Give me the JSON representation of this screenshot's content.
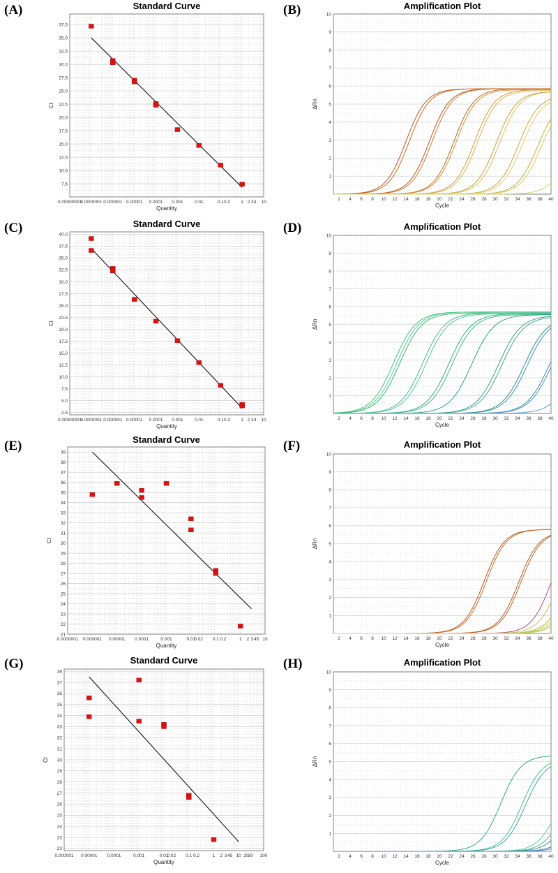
{
  "chart_data": [
    {
      "panel": "(A)",
      "type": "scatter",
      "title": "Standard Curve",
      "xlabel": "Quantity",
      "ylabel": "Ct",
      "xscale": "log",
      "xlim_log": [
        -8,
        1
      ],
      "ylim": [
        5,
        39.5
      ],
      "xticks": [
        {
          "log": -8,
          "label": "0.00000001"
        },
        {
          "log": -7,
          "label": "0.0000001"
        },
        {
          "log": -6,
          "label": "0.000001"
        },
        {
          "log": -5,
          "label": "0.00001"
        },
        {
          "log": -4,
          "label": "0.0001"
        },
        {
          "log": -3,
          "label": "0.001"
        },
        {
          "log": -2,
          "label": "0.01"
        },
        {
          "log": -1,
          "label": "0.1"
        },
        {
          "log": -0.699,
          "label": "0.2"
        },
        {
          "log": 0,
          "label": "1"
        },
        {
          "log": 0.301,
          "label": "2"
        },
        {
          "log": 0.477,
          "label": "3"
        },
        {
          "log": 0.602,
          "label": "4"
        },
        {
          "log": 1,
          "label": "10"
        }
      ],
      "yticks": [
        7.5,
        10.0,
        12.5,
        15.0,
        17.5,
        20.0,
        22.5,
        25.0,
        27.5,
        30.0,
        32.5,
        35.0,
        37.5
      ],
      "points": [
        {
          "logx": -7,
          "y": 37.2
        },
        {
          "logx": -6,
          "y": 30.7
        },
        {
          "logx": -6,
          "y": 30.3
        },
        {
          "logx": -5,
          "y": 27.0
        },
        {
          "logx": -5,
          "y": 26.7
        },
        {
          "logx": -4,
          "y": 22.6
        },
        {
          "logx": -4,
          "y": 22.3
        },
        {
          "logx": -3,
          "y": 17.7
        },
        {
          "logx": -2,
          "y": 14.7
        },
        {
          "logx": -1,
          "y": 11.0
        },
        {
          "logx": 0,
          "y": 7.4
        }
      ],
      "fit_line": [
        {
          "logx": -7,
          "y": 35.0
        },
        {
          "logx": 0,
          "y": 6.8
        }
      ]
    },
    {
      "panel": "(B)",
      "type": "line",
      "title": "Amplification Plot",
      "xlabel": "Cycle",
      "ylabel": "ΔRn",
      "xlim": [
        1,
        40
      ],
      "ylim": [
        0,
        10
      ],
      "xticks": [
        2,
        4,
        6,
        8,
        10,
        12,
        14,
        16,
        18,
        20,
        22,
        24,
        26,
        28,
        30,
        32,
        34,
        36,
        38,
        40
      ],
      "yticks": [
        1,
        2,
        3,
        4,
        5,
        6,
        7,
        8,
        9,
        10
      ],
      "curve_model": "sigmoid",
      "slope_k": 0.55,
      "series": [
        {
          "color": "#b8541c",
          "midpoint": 14.0,
          "plateau": 5.85
        },
        {
          "color": "#c86a22",
          "midpoint": 14.6,
          "plateau": 5.85
        },
        {
          "color": "#b8541c",
          "midpoint": 18.2,
          "plateau": 5.85
        },
        {
          "color": "#d47a2a",
          "midpoint": 18.7,
          "plateau": 5.85
        },
        {
          "color": "#c2651e",
          "midpoint": 22.6,
          "plateau": 5.85
        },
        {
          "color": "#d8913a",
          "midpoint": 23.0,
          "plateau": 5.8
        },
        {
          "color": "#d59b40",
          "midpoint": 26.3,
          "plateau": 5.8
        },
        {
          "color": "#e0b356",
          "midpoint": 26.8,
          "plateau": 5.75
        },
        {
          "color": "#c9a030",
          "midpoint": 30.2,
          "plateau": 5.7
        },
        {
          "color": "#dcc060",
          "midpoint": 30.8,
          "plateau": 5.7
        },
        {
          "color": "#cfa83a",
          "midpoint": 34.2,
          "plateau": 5.5
        },
        {
          "color": "#e2cd70",
          "midpoint": 34.8,
          "plateau": 5.4
        },
        {
          "color": "#c9ad30",
          "midpoint": 37.6,
          "plateau": 5.3
        },
        {
          "color": "#d8cc60",
          "midpoint": 38.2,
          "plateau": 5.2
        },
        {
          "color": "#d0d870",
          "midpoint": 43.5,
          "plateau": 5.0
        }
      ]
    },
    {
      "panel": "(C)",
      "type": "scatter",
      "title": "Standard Curve",
      "xlabel": "Quantity",
      "ylabel": "Ct",
      "xscale": "log",
      "xlim_log": [
        -8,
        1
      ],
      "ylim": [
        2,
        40.5
      ],
      "xticks": [
        {
          "log": -8,
          "label": "0.00000001"
        },
        {
          "log": -7,
          "label": "0.0000001"
        },
        {
          "log": -6,
          "label": "0.000001"
        },
        {
          "log": -5,
          "label": "0.00001"
        },
        {
          "log": -4,
          "label": "0.0001"
        },
        {
          "log": -3,
          "label": "0.001"
        },
        {
          "log": -2,
          "label": "0.01"
        },
        {
          "log": -1,
          "label": "0.1"
        },
        {
          "log": -0.699,
          "label": "0.2"
        },
        {
          "log": 0,
          "label": "1"
        },
        {
          "log": 0.301,
          "label": "2"
        },
        {
          "log": 0.477,
          "label": "3"
        },
        {
          "log": 0.602,
          "label": "4"
        },
        {
          "log": 1,
          "label": "10"
        }
      ],
      "yticks": [
        2.5,
        5.0,
        7.5,
        10.0,
        12.5,
        15.0,
        17.5,
        20.0,
        22.5,
        25.0,
        27.5,
        30.0,
        32.5,
        35.0,
        37.5,
        40.0
      ],
      "points": [
        {
          "logx": -7,
          "y": 39.1
        },
        {
          "logx": -7,
          "y": 36.6
        },
        {
          "logx": -6,
          "y": 32.8
        },
        {
          "logx": -6,
          "y": 32.3
        },
        {
          "logx": -5,
          "y": 26.3
        },
        {
          "logx": -4,
          "y": 21.7
        },
        {
          "logx": -3,
          "y": 17.6
        },
        {
          "logx": -2,
          "y": 13.0
        },
        {
          "logx": -1,
          "y": 8.2
        },
        {
          "logx": 0,
          "y": 4.2
        },
        {
          "logx": 0,
          "y": 3.9
        }
      ],
      "fit_line": [
        {
          "logx": -7,
          "y": 37.0
        },
        {
          "logx": 0,
          "y": 3.4
        }
      ]
    },
    {
      "panel": "(D)",
      "type": "line",
      "title": "Amplification Plot",
      "xlabel": "Cycle",
      "ylabel": "ΔRn",
      "xlim": [
        1,
        40
      ],
      "ylim": [
        0,
        10
      ],
      "xticks": [
        2,
        4,
        6,
        8,
        10,
        12,
        14,
        16,
        18,
        20,
        22,
        24,
        26,
        28,
        30,
        32,
        34,
        36,
        38,
        40
      ],
      "yticks": [
        1,
        2,
        3,
        4,
        5,
        6,
        7,
        8,
        9,
        10
      ],
      "curve_model": "sigmoid",
      "slope_k": 0.5,
      "series": [
        {
          "color": "#3fc47e",
          "midpoint": 11.8,
          "plateau": 5.7
        },
        {
          "color": "#4fd08a",
          "midpoint": 12.4,
          "plateau": 5.7
        },
        {
          "color": "#35b870",
          "midpoint": 12.9,
          "plateau": 5.65
        },
        {
          "color": "#3fbf86",
          "midpoint": 17.0,
          "plateau": 5.65
        },
        {
          "color": "#52c79a",
          "midpoint": 17.6,
          "plateau": 5.6
        },
        {
          "color": "#2fae78",
          "midpoint": 21.7,
          "plateau": 5.6
        },
        {
          "color": "#45b88e",
          "midpoint": 22.3,
          "plateau": 5.55
        },
        {
          "color": "#2aa282",
          "midpoint": 25.8,
          "plateau": 5.55
        },
        {
          "color": "#3b9e8a",
          "midpoint": 30.6,
          "plateau": 5.5
        },
        {
          "color": "#4aa894",
          "midpoint": 31.2,
          "plateau": 5.45
        },
        {
          "color": "#2f8e92",
          "midpoint": 35.2,
          "plateau": 5.4
        },
        {
          "color": "#3a96a0",
          "midpoint": 35.7,
          "plateau": 5.35
        },
        {
          "color": "#3c8fa8",
          "midpoint": 39.6,
          "plateau": 5.3
        },
        {
          "color": "#4a8fb8",
          "midpoint": 40.0,
          "plateau": 5.2
        },
        {
          "color": "#5a9fcf",
          "midpoint": 44.2,
          "plateau": 5.0
        }
      ]
    },
    {
      "panel": "(E)",
      "type": "scatter",
      "title": "Standard Curve",
      "xlabel": "Quantity",
      "ylabel": "Ct",
      "xscale": "log",
      "xlim_log": [
        -7,
        1
      ],
      "ylim": [
        21,
        39.5
      ],
      "xticks": [
        {
          "log": -7,
          "label": "0.0000001"
        },
        {
          "log": -6,
          "label": "0.000001"
        },
        {
          "log": -5,
          "label": "0.00001"
        },
        {
          "log": -4,
          "label": "0.0001"
        },
        {
          "log": -3,
          "label": "0.001"
        },
        {
          "log": -2,
          "label": "0.01"
        },
        {
          "log": -1.699,
          "label": "0.02"
        },
        {
          "log": -1,
          "label": "0.1"
        },
        {
          "log": -0.699,
          "label": "0.2"
        },
        {
          "log": 0,
          "label": "1"
        },
        {
          "log": 0.301,
          "label": "2"
        },
        {
          "log": 0.477,
          "label": "3"
        },
        {
          "log": 0.602,
          "label": "4"
        },
        {
          "log": 0.699,
          "label": "5"
        },
        {
          "log": 1,
          "label": "10"
        }
      ],
      "yticks": [
        21,
        22,
        23,
        24,
        25,
        26,
        27,
        28,
        29,
        30,
        31,
        32,
        33,
        34,
        35,
        36,
        37,
        38,
        39
      ],
      "points": [
        {
          "logx": -6,
          "y": 34.8
        },
        {
          "logx": -5,
          "y": 35.9
        },
        {
          "logx": -4,
          "y": 35.2
        },
        {
          "logx": -4,
          "y": 34.5
        },
        {
          "logx": -3,
          "y": 35.9
        },
        {
          "logx": -2,
          "y": 32.4
        },
        {
          "logx": -2,
          "y": 31.3
        },
        {
          "logx": -1,
          "y": 27.3
        },
        {
          "logx": -1,
          "y": 27.0
        },
        {
          "logx": 0,
          "y": 21.8
        }
      ],
      "fit_line": [
        {
          "logx": -6,
          "y": 39.0
        },
        {
          "logx": 0.45,
          "y": 23.5
        }
      ]
    },
    {
      "panel": "(F)",
      "type": "line",
      "title": "Amplification Plot",
      "xlabel": "Cycle",
      "ylabel": "ΔRn",
      "xlim": [
        1,
        40
      ],
      "ylim": [
        0,
        10
      ],
      "xticks": [
        2,
        4,
        6,
        8,
        10,
        12,
        14,
        16,
        18,
        20,
        22,
        24,
        26,
        28,
        30,
        32,
        34,
        36,
        38,
        40
      ],
      "yticks": [
        1,
        2,
        3,
        4,
        5,
        6,
        7,
        8,
        9,
        10
      ],
      "curve_model": "sigmoid",
      "slope_k": 0.55,
      "series": [
        {
          "color": "#b8541c",
          "midpoint": 28.0,
          "plateau": 5.8
        },
        {
          "color": "#c96a24",
          "midpoint": 28.4,
          "plateau": 5.8
        },
        {
          "color": "#b35a28",
          "midpoint": 34.2,
          "plateau": 5.7
        },
        {
          "color": "#c0672a",
          "midpoint": 34.6,
          "plateau": 5.7
        },
        {
          "color": "#b04a80",
          "midpoint": 40.2,
          "plateau": 6.0
        },
        {
          "color": "#c9c060",
          "midpoint": 41.6,
          "plateau": 6.0
        },
        {
          "color": "#a8b838",
          "midpoint": 43.0,
          "plateau": 5.5
        },
        {
          "color": "#d0d070",
          "midpoint": 43.6,
          "plateau": 5.5
        },
        {
          "color": "#b0c048",
          "midpoint": 44.2,
          "plateau": 5.5
        },
        {
          "color": "#c8d860",
          "midpoint": 44.8,
          "plateau": 5.5
        }
      ]
    },
    {
      "panel": "(G)",
      "type": "scatter",
      "title": "Standard Curve",
      "xlabel": "Quantity",
      "ylabel": "Ct",
      "xscale": "log",
      "xlim_log": [
        -6,
        2
      ],
      "ylim": [
        21.8,
        38.2
      ],
      "xticks": [
        {
          "log": -6,
          "label": "0.000001"
        },
        {
          "log": -5,
          "label": "0.00001"
        },
        {
          "log": -4,
          "label": "0.0001"
        },
        {
          "log": -3,
          "label": "0.001"
        },
        {
          "log": -2,
          "label": "0.01"
        },
        {
          "log": -1.699,
          "label": "0.02"
        },
        {
          "log": -1,
          "label": "0.1"
        },
        {
          "log": -0.699,
          "label": "0.2"
        },
        {
          "log": 0,
          "label": "1"
        },
        {
          "log": 0.301,
          "label": "2"
        },
        {
          "log": 0.477,
          "label": "3"
        },
        {
          "log": 0.602,
          "label": "4"
        },
        {
          "log": 0.699,
          "label": "5"
        },
        {
          "log": 1,
          "label": "10"
        },
        {
          "log": 1.301,
          "label": "20"
        },
        {
          "log": 1.477,
          "label": "30"
        },
        {
          "log": 2,
          "label": "100"
        }
      ],
      "yticks": [
        22,
        23,
        24,
        25,
        26,
        27,
        28,
        29,
        30,
        31,
        32,
        33,
        34,
        35,
        36,
        37,
        38
      ],
      "points": [
        {
          "logx": -5,
          "y": 35.6
        },
        {
          "logx": -5,
          "y": 33.9
        },
        {
          "logx": -3,
          "y": 37.2
        },
        {
          "logx": -3,
          "y": 33.5
        },
        {
          "logx": -2,
          "y": 33.2
        },
        {
          "logx": -2,
          "y": 33.0
        },
        {
          "logx": -1,
          "y": 26.8
        },
        {
          "logx": -1,
          "y": 26.6
        },
        {
          "logx": 0,
          "y": 22.8
        }
      ],
      "fit_line": [
        {
          "logx": -5,
          "y": 37.5
        },
        {
          "logx": 1,
          "y": 22.6
        }
      ]
    },
    {
      "panel": "(H)",
      "type": "line",
      "title": "Amplification Plot",
      "xlabel": "Cycle",
      "ylabel": "ΔRn",
      "xlim": [
        1,
        40
      ],
      "ylim": [
        0,
        10
      ],
      "xticks": [
        2,
        4,
        6,
        8,
        10,
        12,
        14,
        16,
        18,
        20,
        22,
        24,
        26,
        28,
        30,
        32,
        34,
        36,
        38,
        40
      ],
      "yticks": [
        1,
        2,
        3,
        4,
        5,
        6,
        7,
        8,
        9,
        10
      ],
      "curve_model": "sigmoid",
      "slope_k": 0.55,
      "series": [
        {
          "color": "#2fae78",
          "midpoint": 31.0,
          "plateau": 5.35
        },
        {
          "color": "#45c08c",
          "midpoint": 34.8,
          "plateau": 5.2
        },
        {
          "color": "#3aa6a0",
          "midpoint": 35.4,
          "plateau": 5.1
        },
        {
          "color": "#5fcf9a",
          "midpoint": 41.4,
          "plateau": 5.0
        },
        {
          "color": "#49b890",
          "midpoint": 42.6,
          "plateau": 5.0
        },
        {
          "color": "#3f9a88",
          "midpoint": 43.6,
          "plateau": 5.0
        },
        {
          "color": "#2f8cb0",
          "midpoint": 45.4,
          "plateau": 5.0
        },
        {
          "color": "#4f7fcf",
          "midpoint": 46.4,
          "plateau": 5.0
        }
      ]
    }
  ]
}
